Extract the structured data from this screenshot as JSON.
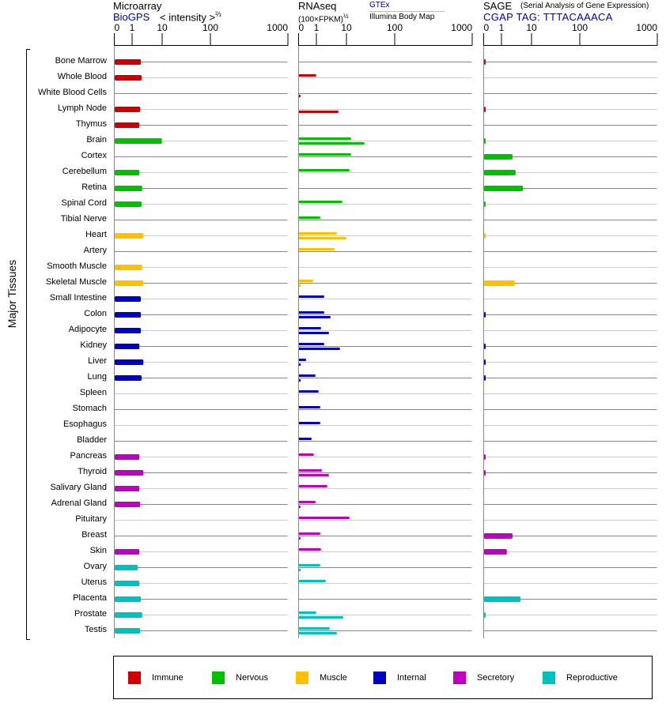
{
  "headers": {
    "microarray": {
      "title": "Microarray",
      "source": "BioGPS",
      "scale_label": "< intensity >",
      "scale_exp": "⅔"
    },
    "rnaseq": {
      "title": "RNAseq",
      "units": "(100×FPKM)",
      "units_exp": "½",
      "source_top": "GTEx",
      "source_bottom": "Illumina Body Map"
    },
    "sage": {
      "title": "SAGE",
      "subtitle": "(Serial Analysis of Gene Expression)",
      "tag": "CGAP TAG: TTTACAAACA"
    }
  },
  "y_axis_label": "Major Tissues",
  "colors": {
    "Immune": "#cc0000",
    "Nervous": "#00c000",
    "Muscle": "#ffc000",
    "Internal": "#0000c0",
    "Secretory": "#c000c0",
    "Reproductive": "#00c0c0"
  },
  "chart_data": {
    "type": "bar",
    "orientation": "horizontal",
    "axis_ticks": [
      0,
      1,
      10,
      100,
      1000
    ],
    "axis_tick_labels": [
      "0",
      "1",
      "10",
      "100",
      "1000"
    ],
    "xlim": [
      0,
      1000
    ],
    "legend": [
      "Immune",
      "Nervous",
      "Muscle",
      "Internal",
      "Secretory",
      "Reproductive"
    ],
    "legend_placement": "bottom",
    "categories": [
      "Bone Marrow",
      "Whole Blood",
      "White Blood Cells",
      "Lymph Node",
      "Thymus",
      "Brain",
      "Cortex",
      "Cerebellum",
      "Retina",
      "Spinal Cord",
      "Tibial Nerve",
      "Heart",
      "Artery",
      "Smooth Muscle",
      "Skeletal Muscle",
      "Small Intestine",
      "Colon",
      "Adipocyte",
      "Kidney",
      "Liver",
      "Lung",
      "Spleen",
      "Stomach",
      "Esophagus",
      "Bladder",
      "Pancreas",
      "Thyroid",
      "Salivary Gland",
      "Adrenal Gland",
      "Pituitary",
      "Breast",
      "Skin",
      "Ovary",
      "Uterus",
      "Placenta",
      "Prostate",
      "Testis"
    ],
    "groups": [
      "Immune",
      "Immune",
      "Immune",
      "Immune",
      "Immune",
      "Nervous",
      "Nervous",
      "Nervous",
      "Nervous",
      "Nervous",
      "Nervous",
      "Muscle",
      "Muscle",
      "Muscle",
      "Muscle",
      "Internal",
      "Internal",
      "Internal",
      "Internal",
      "Internal",
      "Internal",
      "Internal",
      "Internal",
      "Internal",
      "Internal",
      "Secretory",
      "Secretory",
      "Secretory",
      "Secretory",
      "Secretory",
      "Secretory",
      "Secretory",
      "Reproductive",
      "Reproductive",
      "Reproductive",
      "Reproductive",
      "Reproductive"
    ],
    "series": [
      {
        "name": "Microarray (BioGPS)",
        "values": [
          1.9,
          2.0,
          null,
          1.8,
          1.7,
          9.5,
          null,
          1.7,
          2.1,
          2.0,
          null,
          2.3,
          null,
          2.1,
          2.3,
          1.9,
          1.9,
          1.9,
          1.7,
          2.3,
          2.0,
          null,
          null,
          null,
          null,
          1.7,
          2.3,
          1.7,
          1.8,
          null,
          null,
          1.7,
          1.5,
          1.7,
          1.9,
          2.1,
          1.8
        ]
      },
      {
        "name": "RNAseq GTEx",
        "values": [
          null,
          0.96,
          null,
          null,
          null,
          12.2,
          12.2,
          11.3,
          null,
          7.0,
          1.29,
          4.6,
          3.8,
          null,
          0.79,
          1.75,
          1.75,
          1.37,
          1.75,
          0.39,
          0.92,
          1.14,
          1.29,
          1.29,
          0.7,
          0.83,
          1.46,
          2.22,
          0.92,
          11.3,
          1.29,
          1.37,
          1.29,
          1.97,
          null,
          0.96,
          2.67
        ]
      },
      {
        "name": "RNAseq Illumina Body Map",
        "values": [
          null,
          null,
          0.08,
          5.2,
          null,
          23.1,
          null,
          null,
          null,
          null,
          null,
          9.5,
          null,
          null,
          0.08,
          null,
          2.84,
          2.51,
          5.86,
          0.08,
          0.08,
          null,
          null,
          null,
          null,
          null,
          2.51,
          null,
          0.08,
          null,
          0.08,
          null,
          0.08,
          null,
          null,
          7.5,
          4.6
        ]
      },
      {
        "name": "SAGE (CGAP)",
        "values": [
          0.05,
          null,
          null,
          0.05,
          null,
          0.05,
          2.25,
          2.87,
          5.0,
          0.05,
          null,
          0.05,
          null,
          null,
          2.7,
          null,
          0.05,
          null,
          0.05,
          0.05,
          0.05,
          null,
          null,
          null,
          null,
          0.05,
          0.05,
          null,
          null,
          null,
          2.25,
          1.46,
          null,
          null,
          4.16,
          0.05,
          null
        ]
      }
    ]
  }
}
